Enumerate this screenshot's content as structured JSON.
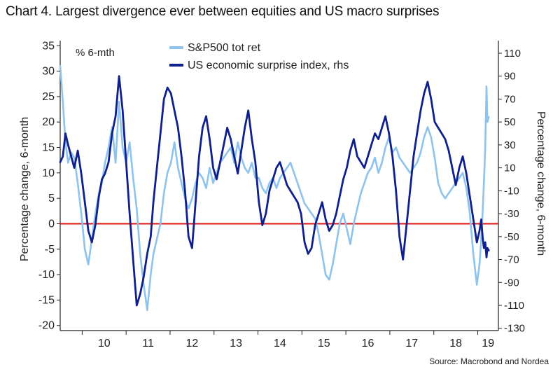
{
  "title": "Chart 4. Largest divergence ever between equities and US macro surprises",
  "source": "Source: Macrobond and Nordea",
  "colors": {
    "sp500": "#8ec3ee",
    "surprise": "#0f1f8c",
    "zero_line": "#e01010",
    "axis": "#222222"
  },
  "chart_data": {
    "type": "line",
    "title": "Chart 4. Largest divergence ever between equities and US macro surprises",
    "unit_note": "% 6-mth",
    "ylabel_left": "Percentage change, 6-month",
    "ylabel_right": "Percentage change, 6-month",
    "ylim_left": [
      -21,
      36
    ],
    "ylim_right": [
      -132,
      121
    ],
    "left_ticks": [
      35,
      30,
      25,
      20,
      15,
      10,
      5,
      0,
      -5,
      -10,
      -15,
      -20
    ],
    "right_ticks": [
      110,
      90,
      70,
      50,
      30,
      10,
      -10,
      -30,
      -50,
      -70,
      -90,
      -110,
      -130
    ],
    "x_ticks": [
      "10",
      "11",
      "12",
      "13",
      "14",
      "15",
      "16",
      "17",
      "18",
      "19"
    ],
    "xlim": [
      2009.5,
      2019.47
    ],
    "legend_position": "top-center",
    "grid": false,
    "zero_line": 0,
    "series": [
      {
        "name": "S&P500 tot ret",
        "axis": "left",
        "x": [
          2009.5,
          2009.56,
          2009.62,
          2009.68,
          2009.75,
          2009.82,
          2009.9,
          2009.98,
          2010.06,
          2010.14,
          2010.22,
          2010.3,
          2010.38,
          2010.45,
          2010.52,
          2010.6,
          2010.68,
          2010.76,
          2010.84,
          2010.92,
          2011.0,
          2011.08,
          2011.16,
          2011.24,
          2011.32,
          2011.4,
          2011.48,
          2011.56,
          2011.62,
          2011.7,
          2011.78,
          2011.86,
          2011.94,
          2012.02,
          2012.1,
          2012.18,
          2012.26,
          2012.34,
          2012.42,
          2012.5,
          2012.58,
          2012.66,
          2012.74,
          2012.82,
          2012.9,
          2012.98,
          2013.06,
          2013.14,
          2013.22,
          2013.3,
          2013.38,
          2013.46,
          2013.54,
          2013.62,
          2013.7,
          2013.78,
          2013.86,
          2013.94,
          2014.02,
          2014.1,
          2014.18,
          2014.26,
          2014.34,
          2014.42,
          2014.5,
          2014.58,
          2014.66,
          2014.74,
          2014.82,
          2014.9,
          2014.98,
          2015.06,
          2015.14,
          2015.22,
          2015.3,
          2015.38,
          2015.46,
          2015.54,
          2015.62,
          2015.7,
          2015.78,
          2015.86,
          2015.94,
          2016.02,
          2016.1,
          2016.18,
          2016.26,
          2016.34,
          2016.42,
          2016.5,
          2016.58,
          2016.66,
          2016.74,
          2016.82,
          2016.9,
          2016.98,
          2017.06,
          2017.14,
          2017.22,
          2017.3,
          2017.38,
          2017.46,
          2017.54,
          2017.62,
          2017.7,
          2017.78,
          2017.86,
          2017.94,
          2018.02,
          2018.1,
          2018.18,
          2018.26,
          2018.34,
          2018.42,
          2018.5,
          2018.58,
          2018.66,
          2018.74,
          2018.82,
          2018.9,
          2018.98,
          2019.04,
          2019.08,
          2019.11,
          2019.14,
          2019.17,
          2019.2,
          2019.22,
          2019.25
        ],
        "values": [
          31,
          24,
          16,
          12,
          14,
          13,
          8,
          2,
          -5,
          -8,
          -3,
          2,
          6,
          8,
          12,
          15,
          19,
          12,
          24,
          15,
          12,
          16,
          9,
          3,
          -6,
          -12,
          -17,
          -10,
          -6,
          -3,
          0,
          6,
          10,
          12,
          16,
          11,
          8,
          5,
          3,
          5,
          8,
          10,
          9,
          7,
          11,
          8,
          10,
          12,
          13,
          14,
          15,
          12,
          16,
          13,
          11,
          10,
          12,
          9,
          9,
          7,
          6,
          8,
          9,
          7,
          9,
          10,
          11,
          12,
          10,
          8,
          6,
          4,
          3,
          2,
          1,
          -2,
          -6,
          -10,
          -11,
          -8,
          -4,
          0,
          2,
          -1,
          -4,
          0,
          3,
          6,
          8,
          10,
          11,
          13,
          10,
          12,
          15,
          17,
          14,
          15,
          13,
          12,
          11,
          10,
          11,
          12,
          14,
          17,
          19,
          17,
          13,
          8,
          6,
          5,
          6,
          7,
          8,
          9,
          10,
          7,
          2,
          -6,
          -12,
          -8,
          -3,
          2,
          8,
          15,
          27,
          20,
          21
        ]
      },
      {
        "name": "US economic surprise index, rhs",
        "axis": "right",
        "x": [
          2009.5,
          2009.56,
          2009.62,
          2009.68,
          2009.75,
          2009.82,
          2009.9,
          2009.98,
          2010.06,
          2010.14,
          2010.22,
          2010.3,
          2010.38,
          2010.45,
          2010.52,
          2010.6,
          2010.68,
          2010.76,
          2010.84,
          2010.92,
          2011.0,
          2011.08,
          2011.16,
          2011.24,
          2011.32,
          2011.4,
          2011.48,
          2011.56,
          2011.62,
          2011.7,
          2011.78,
          2011.86,
          2011.94,
          2012.02,
          2012.1,
          2012.18,
          2012.26,
          2012.34,
          2012.42,
          2012.5,
          2012.58,
          2012.66,
          2012.74,
          2012.82,
          2012.9,
          2012.98,
          2013.06,
          2013.14,
          2013.22,
          2013.3,
          2013.38,
          2013.46,
          2013.54,
          2013.62,
          2013.7,
          2013.78,
          2013.86,
          2013.94,
          2014.02,
          2014.1,
          2014.18,
          2014.26,
          2014.34,
          2014.42,
          2014.5,
          2014.58,
          2014.66,
          2014.74,
          2014.82,
          2014.9,
          2014.98,
          2015.06,
          2015.14,
          2015.22,
          2015.3,
          2015.38,
          2015.46,
          2015.54,
          2015.62,
          2015.7,
          2015.78,
          2015.86,
          2015.94,
          2016.02,
          2016.1,
          2016.18,
          2016.26,
          2016.34,
          2016.42,
          2016.5,
          2016.58,
          2016.66,
          2016.74,
          2016.82,
          2016.9,
          2016.98,
          2017.06,
          2017.14,
          2017.22,
          2017.3,
          2017.38,
          2017.46,
          2017.54,
          2017.62,
          2017.7,
          2017.78,
          2017.86,
          2017.94,
          2018.02,
          2018.1,
          2018.18,
          2018.26,
          2018.34,
          2018.42,
          2018.5,
          2018.58,
          2018.66,
          2018.74,
          2018.82,
          2018.9,
          2018.98,
          2019.04,
          2019.08,
          2019.11,
          2019.14,
          2019.17,
          2019.2,
          2019.22,
          2019.25
        ],
        "values": [
          15,
          20,
          40,
          30,
          20,
          10,
          25,
          5,
          -20,
          -45,
          -55,
          -40,
          -15,
          0,
          5,
          15,
          40,
          55,
          90,
          60,
          15,
          -30,
          -70,
          -110,
          -100,
          -85,
          -65,
          -50,
          -20,
          10,
          40,
          70,
          80,
          75,
          60,
          45,
          20,
          -10,
          -50,
          -60,
          -20,
          20,
          45,
          55,
          35,
          10,
          0,
          15,
          30,
          45,
          35,
          20,
          5,
          25,
          45,
          60,
          35,
          15,
          -20,
          -40,
          -30,
          -10,
          0,
          10,
          15,
          5,
          -5,
          -10,
          -15,
          -20,
          -30,
          -55,
          -65,
          -60,
          -40,
          -30,
          -20,
          -35,
          -45,
          -40,
          -30,
          -15,
          0,
          10,
          25,
          35,
          20,
          15,
          10,
          20,
          30,
          40,
          35,
          45,
          55,
          40,
          20,
          -10,
          -50,
          -70,
          -40,
          -10,
          20,
          40,
          60,
          75,
          85,
          70,
          50,
          45,
          40,
          35,
          25,
          10,
          -5,
          10,
          20,
          5,
          -15,
          -35,
          -55,
          -45,
          -35,
          -50,
          -60,
          -55,
          -68,
          -60,
          -62
        ]
      }
    ]
  }
}
